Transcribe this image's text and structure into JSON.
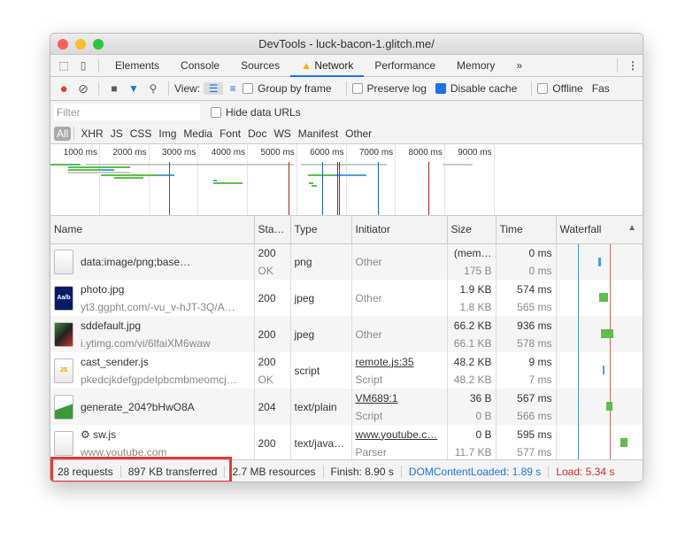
{
  "window": {
    "title": "DevTools - luck-bacon-1.glitch.me/"
  },
  "tabs": [
    "Elements",
    "Console",
    "Sources",
    "Network",
    "Performance",
    "Memory"
  ],
  "tabs_more": "»",
  "active_tab": "Network",
  "toolbar": {
    "view_label": "View:",
    "group_by_frame": "Group by frame",
    "preserve_log": "Preserve log",
    "disable_cache": "Disable cache",
    "offline": "Offline",
    "throttle": "Fas",
    "disable_cache_checked": true
  },
  "filter": {
    "placeholder": "Filter",
    "hide_data_urls": "Hide data URLs"
  },
  "types": [
    "All",
    "XHR",
    "JS",
    "CSS",
    "Img",
    "Media",
    "Font",
    "Doc",
    "WS",
    "Manifest",
    "Other"
  ],
  "overview": {
    "ticks": [
      "1000 ms",
      "2000 ms",
      "3000 ms",
      "4000 ms",
      "5000 ms",
      "6000 ms",
      "7000 ms",
      "8000 ms",
      "9000 ms"
    ]
  },
  "columns": [
    "Name",
    "Sta…",
    "Type",
    "Initiator",
    "Size",
    "Time",
    "Waterfall"
  ],
  "rows": [
    {
      "name": "data:image/png;base…",
      "sub": "",
      "status": "200",
      "status_text": "OK",
      "type": "png",
      "initiator": "Other",
      "initiator_sub": "",
      "size": "(mem…",
      "size_sub": "175 B",
      "time": "0 ms",
      "time_sub": "0 ms"
    },
    {
      "name": "photo.jpg",
      "sub": "yt3.ggpht.com/-vu_v-hJT-3Q/A…",
      "status": "200",
      "status_text": "",
      "type": "jpeg",
      "initiator": "Other",
      "initiator_sub": "",
      "size": "1.9 KB",
      "size_sub": "1.8 KB",
      "time": "574 ms",
      "time_sub": "565 ms"
    },
    {
      "name": "sddefault.jpg",
      "sub": "i.ytimg.com/vi/6lfaiXM6waw",
      "status": "200",
      "status_text": "",
      "type": "jpeg",
      "initiator": "Other",
      "initiator_sub": "",
      "size": "66.2 KB",
      "size_sub": "66.1 KB",
      "time": "936 ms",
      "time_sub": "578 ms"
    },
    {
      "name": "cast_sender.js",
      "sub": "pkedcjkdefgpdelpbcmbmeomcj…",
      "status": "200",
      "status_text": "OK",
      "type": "script",
      "initiator": "remote.js:35",
      "initiator_sub": "Script",
      "size": "48.2 KB",
      "size_sub": "48.2 KB",
      "time": "9 ms",
      "time_sub": "7 ms"
    },
    {
      "name": "generate_204?bHwO8A",
      "sub": "",
      "status": "204",
      "status_text": "",
      "type": "text/plain",
      "initiator": "VM689:1",
      "initiator_sub": "Script",
      "size": "36 B",
      "size_sub": "0 B",
      "time": "567 ms",
      "time_sub": "566 ms"
    },
    {
      "name": "sw.js",
      "sub": "www.youtube.com",
      "status": "200",
      "status_text": "",
      "type": "text/java…",
      "initiator": "www.youtube.c…",
      "initiator_sub": "Parser",
      "size": "0 B",
      "size_sub": "11.7 KB",
      "time": "595 ms",
      "time_sub": "577 ms"
    }
  ],
  "status_bar": {
    "requests": "28 requests",
    "transferred": "897 KB transferred",
    "resources": "2.7 MB resources",
    "finish": "Finish: 8.90 s",
    "dom": "DOMContentLoaded: 1.89 s",
    "load": "Load: 5.34 s"
  },
  "colors": {
    "accent": "#1a73e8",
    "dom_line": "#4a90e2",
    "load_line": "#c62828",
    "highlight": "#e53935"
  }
}
